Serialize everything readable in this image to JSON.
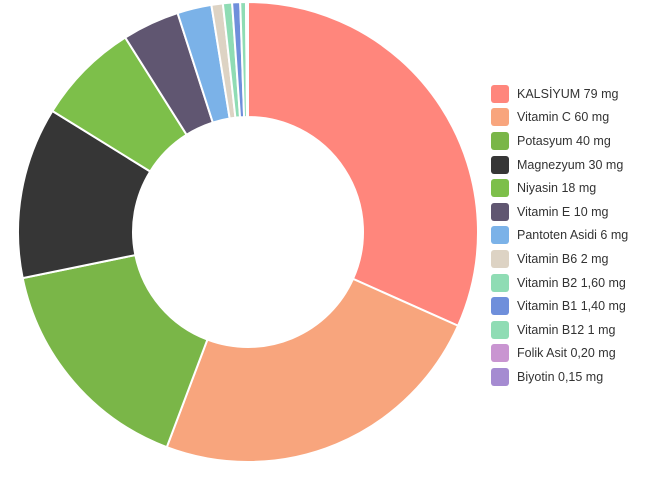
{
  "chart_data": {
    "type": "pie",
    "variant": "donut",
    "legend_position": "right",
    "slices": [
      {
        "label": "KALSİYUM 79 mg",
        "value": 79,
        "color": "#ff867c"
      },
      {
        "label": "Vitamin C 60 mg",
        "value": 60,
        "color": "#f8a57d"
      },
      {
        "label": "Potasyum 40 mg",
        "value": 40,
        "color": "#7ab648"
      },
      {
        "label": "Magnezyum 30 mg",
        "value": 30,
        "color": "#363636"
      },
      {
        "label": "Niyasin 18 mg",
        "value": 18,
        "color": "#7dbf4a"
      },
      {
        "label": "Vitamin E 10 mg",
        "value": 10,
        "color": "#605671"
      },
      {
        "label": "Pantoten Asidi 6 mg",
        "value": 6,
        "color": "#7bb2e8"
      },
      {
        "label": "Vitamin B6 2 mg",
        "value": 2,
        "color": "#ddd3c4"
      },
      {
        "label": "Vitamin B2 1,60 mg",
        "value": 1.6,
        "color": "#8fdcb4"
      },
      {
        "label": "Vitamin B1 1,40 mg",
        "value": 1.4,
        "color": "#6f8fdb"
      },
      {
        "label": "Vitamin B12 1 mg",
        "value": 1,
        "color": "#8fdcb4"
      },
      {
        "label": "Folik Asit 0,20 mg",
        "value": 0.2,
        "color": "#c995d1"
      },
      {
        "label": "Biyotin 0,15 mg",
        "value": 0.15,
        "color": "#a58bd1"
      }
    ]
  }
}
